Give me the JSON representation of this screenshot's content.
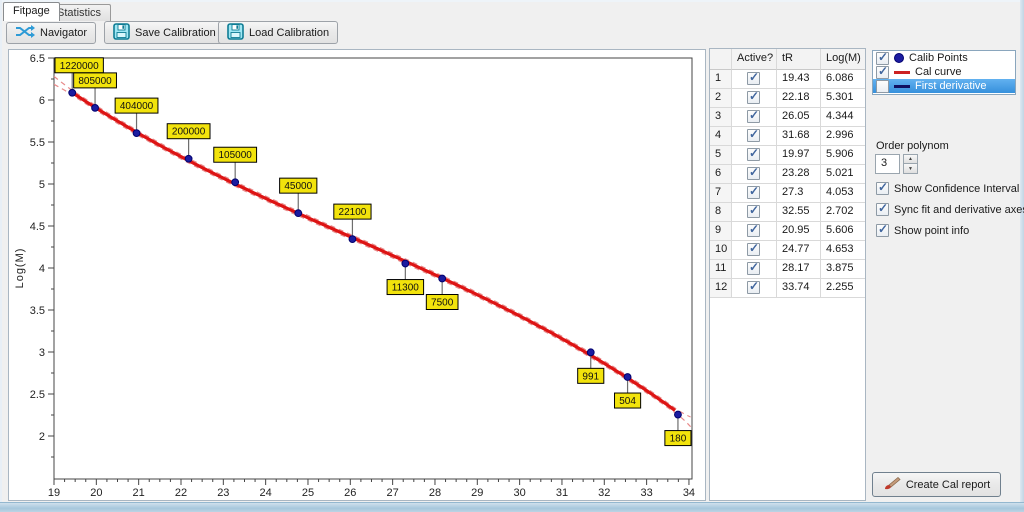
{
  "tabs": {
    "fitpage": "Fitpage",
    "statistics": "Statistics"
  },
  "toolbar": {
    "navigator": "Navigator",
    "save": "Save Calibration",
    "load": "Load Calibration"
  },
  "table": {
    "headers": {
      "row_num": "",
      "active": "Active?",
      "tr": "tR",
      "logm": "Log(M)"
    },
    "rows": [
      {
        "n": "1",
        "active": true,
        "tR": "19.43",
        "logM": "6.086"
      },
      {
        "n": "2",
        "active": true,
        "tR": "22.18",
        "logM": "5.301"
      },
      {
        "n": "3",
        "active": true,
        "tR": "26.05",
        "logM": "4.344"
      },
      {
        "n": "4",
        "active": true,
        "tR": "31.68",
        "logM": "2.996"
      },
      {
        "n": "5",
        "active": true,
        "tR": "19.97",
        "logM": "5.906"
      },
      {
        "n": "6",
        "active": true,
        "tR": "23.28",
        "logM": "5.021"
      },
      {
        "n": "7",
        "active": true,
        "tR": "27.3",
        "logM": "4.053"
      },
      {
        "n": "8",
        "active": true,
        "tR": "32.55",
        "logM": "2.702"
      },
      {
        "n": "9",
        "active": true,
        "tR": "20.95",
        "logM": "5.606"
      },
      {
        "n": "10",
        "active": true,
        "tR": "24.77",
        "logM": "4.653"
      },
      {
        "n": "11",
        "active": true,
        "tR": "28.17",
        "logM": "3.875"
      },
      {
        "n": "12",
        "active": true,
        "tR": "33.74",
        "logM": "2.255"
      }
    ]
  },
  "legend": {
    "items": [
      {
        "label": "Calib Points",
        "checked": true,
        "marker": "dot",
        "selected": false
      },
      {
        "label": "Cal curve",
        "checked": true,
        "marker": "red-line",
        "selected": false
      },
      {
        "label": "First derivative",
        "checked": false,
        "marker": "navy-line",
        "selected": true
      }
    ]
  },
  "controls": {
    "order_polynom_label": "Order polynom",
    "order_polynom_value": "3",
    "checkboxes": [
      {
        "label": "Show Confidence Interval",
        "checked": true
      },
      {
        "label": "Sync fit and derivative axes",
        "checked": true
      },
      {
        "label": "Show point info",
        "checked": true
      }
    ]
  },
  "report": {
    "label": "Create Cal report"
  },
  "chart_data": {
    "type": "scatter",
    "title": "",
    "xlabel": "",
    "ylabel": "Log(M)",
    "x_ticks": [
      19,
      20,
      21,
      22,
      23,
      24,
      25,
      26,
      27,
      28,
      29,
      30,
      31,
      32,
      33,
      34
    ],
    "y_ticks": [
      6.5,
      6,
      5.5,
      5,
      4.5,
      4,
      3.5,
      3,
      2.5,
      2
    ],
    "xlim": [
      19,
      34.07
    ],
    "ylim": [
      1.667,
      6.679
    ],
    "fit": {
      "type": "polynomial",
      "order": 3
    },
    "show_confidence_interval": true,
    "legend_position": "external-right",
    "points": [
      {
        "tR": 19.43,
        "logM": 6.086,
        "label": "1220000",
        "label_side": "above"
      },
      {
        "tR": 19.97,
        "logM": 5.906,
        "label": "805000",
        "label_side": "above"
      },
      {
        "tR": 20.95,
        "logM": 5.606,
        "label": "404000",
        "label_side": "above"
      },
      {
        "tR": 22.18,
        "logM": 5.301,
        "label": "200000",
        "label_side": "above"
      },
      {
        "tR": 23.28,
        "logM": 5.021,
        "label": "105000",
        "label_side": "above"
      },
      {
        "tR": 24.77,
        "logM": 4.653,
        "label": "45000",
        "label_side": "above"
      },
      {
        "tR": 26.05,
        "logM": 4.344,
        "label": "22100",
        "label_side": "above"
      },
      {
        "tR": 27.3,
        "logM": 4.053,
        "label": "11300",
        "label_side": "below"
      },
      {
        "tR": 28.17,
        "logM": 3.875,
        "label": "7500",
        "label_side": "below"
      },
      {
        "tR": 31.68,
        "logM": 2.996,
        "label": "991",
        "label_side": "below"
      },
      {
        "tR": 32.55,
        "logM": 2.702,
        "label": "504",
        "label_side": "below"
      },
      {
        "tR": 33.74,
        "logM": 2.255,
        "label": "180",
        "label_side": "below"
      }
    ],
    "colors": {
      "point": "#1c1ca0",
      "point_border": "#00006e",
      "curve": "#dd1414",
      "confidence": "#e88a8a",
      "label_bg": "#f2e30c",
      "label_border": "#000000",
      "axis": "#444444"
    }
  }
}
